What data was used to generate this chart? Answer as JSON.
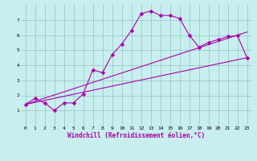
{
  "xlabel": "Windchill (Refroidissement éolien,°C)",
  "bg_color": "#c8eef0",
  "grid_color": "#99cccc",
  "line_color": "#aa00aa",
  "xlim": [
    -0.5,
    23.5
  ],
  "ylim": [
    0,
    8
  ],
  "xticks": [
    0,
    1,
    2,
    3,
    4,
    5,
    6,
    7,
    8,
    9,
    10,
    11,
    12,
    13,
    14,
    15,
    16,
    17,
    18,
    19,
    20,
    21,
    22,
    23
  ],
  "yticks": [
    1,
    2,
    3,
    4,
    5,
    6,
    7
  ],
  "line1_x": [
    0,
    1,
    2,
    3,
    4,
    5,
    6,
    7,
    8,
    9,
    10,
    11,
    12,
    13,
    14,
    15,
    16,
    17,
    18,
    19,
    20,
    21,
    22,
    23
  ],
  "line1_y": [
    1.4,
    1.8,
    1.5,
    1.0,
    1.5,
    1.5,
    2.1,
    3.7,
    3.5,
    4.7,
    5.4,
    6.3,
    7.4,
    7.6,
    7.3,
    7.3,
    7.1,
    6.0,
    5.2,
    5.5,
    5.7,
    5.9,
    5.95,
    4.5
  ],
  "line2_x": [
    0,
    23
  ],
  "line2_y": [
    1.4,
    4.5
  ],
  "line3_x": [
    0,
    23
  ],
  "line3_y": [
    1.4,
    6.2
  ],
  "marker": "D",
  "markersize": 2.5,
  "linewidth": 0.8
}
